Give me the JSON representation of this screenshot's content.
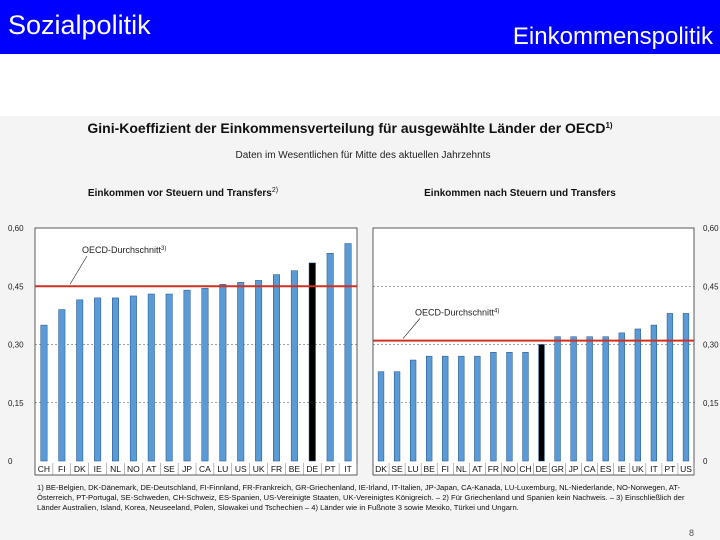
{
  "slide": {
    "left_title": "Sozialpolitik",
    "right_title": "Einkommenspolitik",
    "page_number": "8",
    "colors": {
      "header": "#0000ff",
      "bar": "#5b9bd5",
      "highlight_bar": "#000000",
      "oecd_line": "#d03020"
    }
  },
  "chart_data": {
    "title": "Gini-Koeffizient der Einkommensverteilung für ausgewählte Länder der OECD",
    "title_sup": "1)",
    "subtitle": "Daten im Wesentlichen für Mitte des aktuellen Jahrzehnts",
    "y_ticks": [
      "0,60",
      "0,45",
      "0,30",
      "0,15",
      "0"
    ],
    "ylim": [
      0,
      0.6
    ],
    "panels": [
      {
        "type": "bar",
        "title": "Einkommen vor Steuern und Transfers",
        "title_sup": "2)",
        "categories": [
          "CH",
          "FI",
          "DK",
          "IE",
          "NL",
          "NO",
          "AT",
          "SE",
          "JP",
          "CA",
          "LU",
          "US",
          "UK",
          "FR",
          "BE",
          "DE",
          "PT",
          "IT"
        ],
        "values": [
          0.35,
          0.39,
          0.415,
          0.42,
          0.42,
          0.425,
          0.43,
          0.43,
          0.44,
          0.445,
          0.455,
          0.46,
          0.465,
          0.48,
          0.49,
          0.51,
          0.535,
          0.56
        ],
        "highlight": "DE",
        "oecd_average": 0.45,
        "oecd_label": "OECD-Durchschnitt",
        "oecd_sup": "3)"
      },
      {
        "type": "bar",
        "title": "Einkommen nach Steuern und Transfers",
        "title_sup": "",
        "categories": [
          "DK",
          "SE",
          "LU",
          "BE",
          "FI",
          "NL",
          "AT",
          "FR",
          "NO",
          "CH",
          "DE",
          "GR",
          "JP",
          "CA",
          "ES",
          "IE",
          "UK",
          "IT",
          "PT",
          "US"
        ],
        "values": [
          0.23,
          0.23,
          0.26,
          0.27,
          0.27,
          0.27,
          0.27,
          0.28,
          0.28,
          0.28,
          0.3,
          0.32,
          0.32,
          0.32,
          0.32,
          0.33,
          0.34,
          0.35,
          0.38,
          0.38
        ],
        "highlight": "DE",
        "oecd_average": 0.31,
        "oecd_label": "OECD-Durchschnitt",
        "oecd_sup": "4)"
      }
    ],
    "footnote": "1) BE-Belgien, DK-Dänemark, DE-Deutschland, FI-Finnland, FR-Frankreich, GR-Griechenland, IE-Irland, IT-Italien, JP-Japan, CA-Kanada, LU-Luxemburg, NL-Niederlande, NO-Norwegen, AT-Österreich, PT-Portugal, SE-Schweden, CH-Schweiz, ES-Spanien, US-Vereinigte Staaten, UK-Vereinigtes Königreich. – 2) Für Griechenland und Spanien kein Nachweis. – 3) Einschließlich der Länder Australien, Island, Korea, Neuseeland, Polen, Slowakei und Tschechien – 4) Länder wie in Fußnote 3 sowie Mexiko, Türkei und Ungarn."
  }
}
